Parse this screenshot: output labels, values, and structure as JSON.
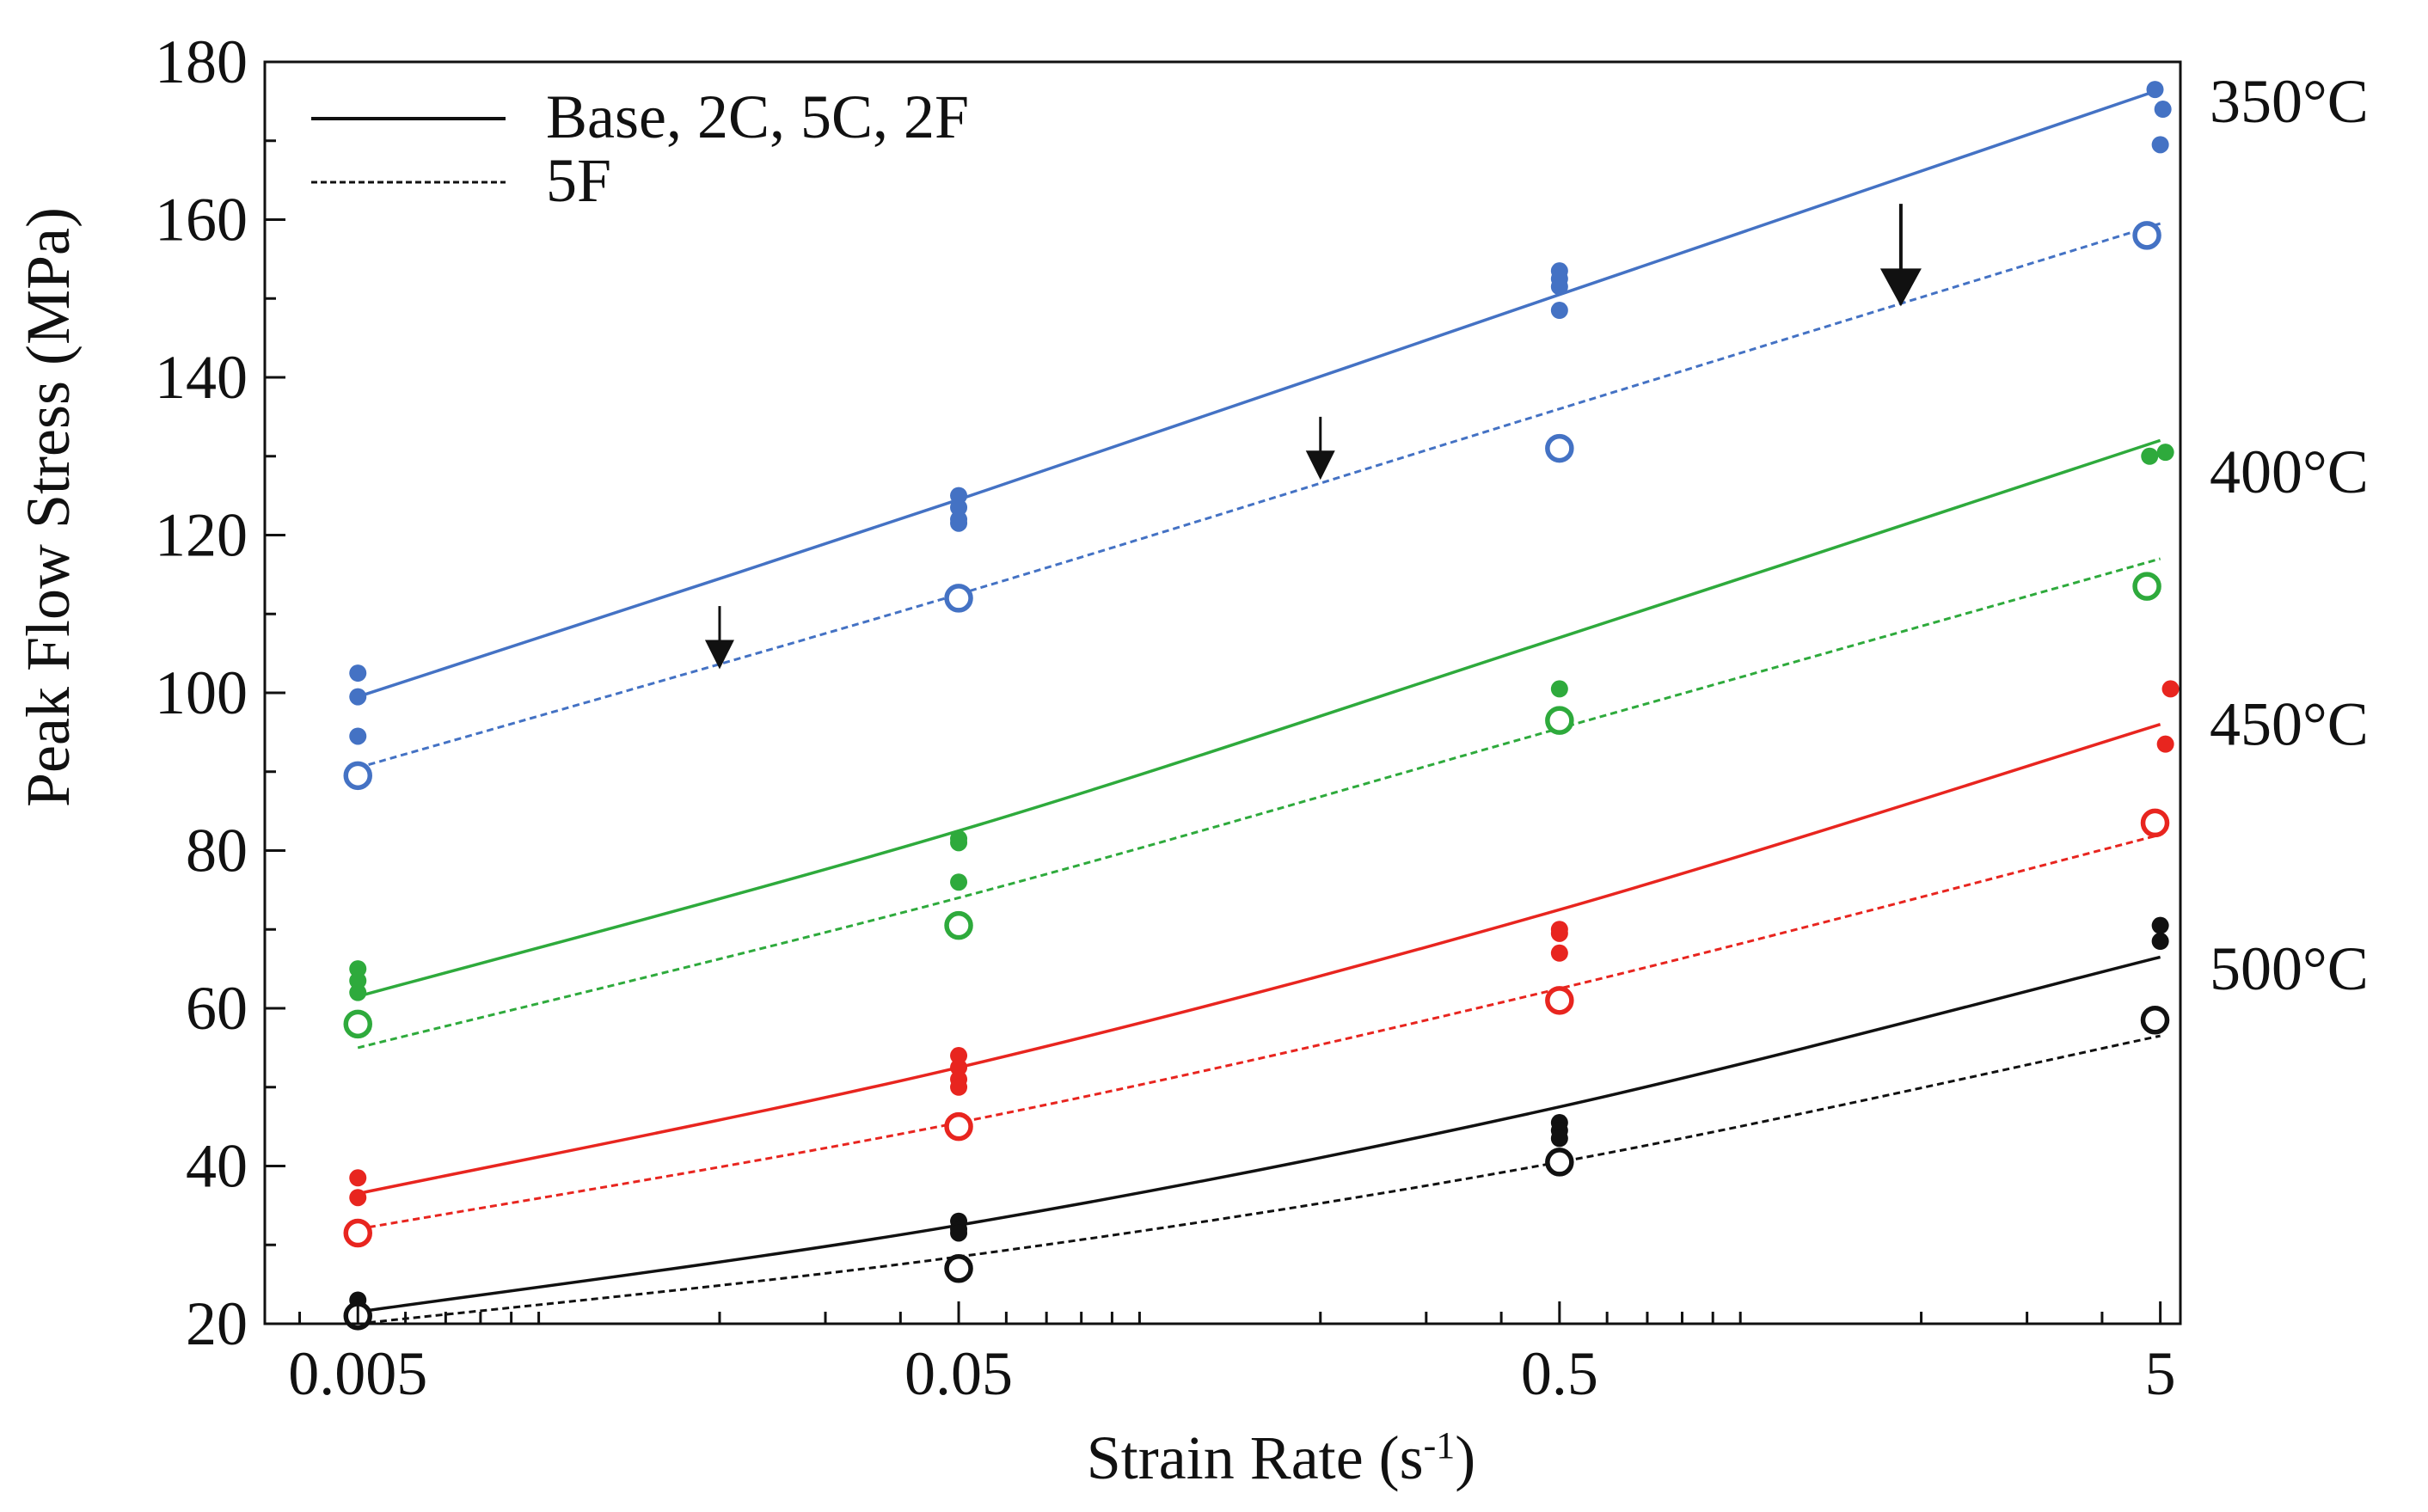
{
  "chart_data": {
    "type": "scatter",
    "xscale": "log",
    "x_ticks": [
      {
        "value": 0.005,
        "label": "0.005"
      },
      {
        "value": 0.05,
        "label": "0.05"
      },
      {
        "value": 0.5,
        "label": "0.5"
      },
      {
        "value": 5,
        "label": "5"
      }
    ],
    "xlim": [
      0.0035,
      5.4
    ],
    "ylim": [
      20,
      180
    ],
    "y_ticks": [
      {
        "value": 20,
        "label": "20"
      },
      {
        "value": 40,
        "label": "40"
      },
      {
        "value": 60,
        "label": "60"
      },
      {
        "value": 80,
        "label": "80"
      },
      {
        "value": 100,
        "label": "100"
      },
      {
        "value": 120,
        "label": "120"
      },
      {
        "value": 140,
        "label": "140"
      },
      {
        "value": 160,
        "label": "160"
      },
      {
        "value": 180,
        "label": "180"
      }
    ],
    "xlabel": "Strain Rate (s",
    "xlabel_sup": "-1",
    "xlabel_end": ")",
    "ylabel": "Peak Flow Stress (MPa)",
    "legend": {
      "position": "top-left",
      "entries": [
        {
          "label": "Base, 2C, 5C, 2F",
          "style": "solid"
        },
        {
          "label": "5F",
          "style": "dashed"
        }
      ]
    },
    "series": [
      {
        "temperature": "350°C",
        "color": "#4472c4",
        "temp_label_y": 175,
        "fit_solid": {
          "x": [
            0.005,
            0.05,
            0.5,
            5
          ],
          "y": [
            99.5,
            124.5,
            150.5,
            176.5
          ]
        },
        "fit_dashed": {
          "x": [
            0.005,
            0.05,
            0.5,
            5
          ],
          "y": [
            90.5,
            112.5,
            136,
            159.5
          ]
        },
        "filled_points": [
          {
            "x": 0.005,
            "y": 102.5
          },
          {
            "x": 0.005,
            "y": 99.5
          },
          {
            "x": 0.005,
            "y": 94.5
          },
          {
            "x": 0.05,
            "y": 125
          },
          {
            "x": 0.05,
            "y": 123.5
          },
          {
            "x": 0.05,
            "y": 122
          },
          {
            "x": 0.05,
            "y": 121.5
          },
          {
            "x": 0.5,
            "y": 153.5
          },
          {
            "x": 0.5,
            "y": 152.5
          },
          {
            "x": 0.5,
            "y": 151.5
          },
          {
            "x": 0.5,
            "y": 148.5
          },
          {
            "x": 4.9,
            "y": 176.5
          },
          {
            "x": 5.05,
            "y": 174
          },
          {
            "x": 5.0,
            "y": 169.5
          }
        ],
        "open_points": [
          {
            "x": 0.005,
            "y": 89.5
          },
          {
            "x": 0.05,
            "y": 112
          },
          {
            "x": 0.5,
            "y": 131
          },
          {
            "x": 4.75,
            "y": 158
          }
        ]
      },
      {
        "temperature": "400°C",
        "color": "#2eaa3c",
        "temp_label_y": 128,
        "fit_solid": {
          "x": [
            0.005,
            0.05,
            0.5,
            5
          ],
          "y": [
            61.5,
            82.5,
            107,
            132
          ]
        },
        "fit_dashed": {
          "x": [
            0.005,
            0.05,
            0.5,
            5
          ],
          "y": [
            55,
            74,
            95.5,
            117
          ]
        },
        "filled_points": [
          {
            "x": 0.005,
            "y": 65
          },
          {
            "x": 0.005,
            "y": 63.5
          },
          {
            "x": 0.005,
            "y": 62
          },
          {
            "x": 0.05,
            "y": 81.5
          },
          {
            "x": 0.05,
            "y": 81
          },
          {
            "x": 0.05,
            "y": 76
          },
          {
            "x": 0.5,
            "y": 100.5
          },
          {
            "x": 4.8,
            "y": 130
          },
          {
            "x": 5.1,
            "y": 130.5
          }
        ],
        "open_points": [
          {
            "x": 0.005,
            "y": 58
          },
          {
            "x": 0.05,
            "y": 70.5
          },
          {
            "x": 0.5,
            "y": 96.5
          },
          {
            "x": 4.75,
            "y": 113.5
          }
        ]
      },
      {
        "temperature": "450°C",
        "color": "#e8251f",
        "temp_label_y": 96,
        "fit_solid": {
          "x": [
            0.005,
            0.05,
            0.5,
            5
          ],
          "y": [
            36.5,
            52.5,
            72.5,
            96
          ]
        },
        "fit_dashed": {
          "x": [
            0.005,
            0.05,
            0.5,
            5
          ],
          "y": [
            32,
            45.5,
            62.5,
            82
          ]
        },
        "filled_points": [
          {
            "x": 0.005,
            "y": 38.5
          },
          {
            "x": 0.005,
            "y": 36
          },
          {
            "x": 0.05,
            "y": 54
          },
          {
            "x": 0.05,
            "y": 52.5
          },
          {
            "x": 0.05,
            "y": 51
          },
          {
            "x": 0.05,
            "y": 50
          },
          {
            "x": 0.5,
            "y": 70
          },
          {
            "x": 0.5,
            "y": 69.5
          },
          {
            "x": 0.5,
            "y": 67
          },
          {
            "x": 5.2,
            "y": 100.5
          },
          {
            "x": 5.1,
            "y": 93.5
          }
        ],
        "open_points": [
          {
            "x": 0.005,
            "y": 31.5
          },
          {
            "x": 0.05,
            "y": 45
          },
          {
            "x": 0.5,
            "y": 61
          },
          {
            "x": 4.9,
            "y": 83.5
          }
        ]
      },
      {
        "temperature": "500°C",
        "color": "#111111",
        "temp_label_y": 65,
        "fit_solid": {
          "x": [
            0.005,
            0.05,
            0.5,
            5
          ],
          "y": [
            21.5,
            32.5,
            47.5,
            66.5
          ]
        },
        "fit_dashed": {
          "x": [
            0.005,
            0.05,
            0.5,
            5
          ],
          "y": [
            20,
            28.5,
            40.5,
            56.5
          ]
        },
        "filled_points": [
          {
            "x": 0.005,
            "y": 23
          },
          {
            "x": 0.005,
            "y": 22
          },
          {
            "x": 0.005,
            "y": 21
          },
          {
            "x": 0.05,
            "y": 33
          },
          {
            "x": 0.05,
            "y": 32
          },
          {
            "x": 0.05,
            "y": 31.5
          },
          {
            "x": 0.5,
            "y": 45.5
          },
          {
            "x": 0.5,
            "y": 44.5
          },
          {
            "x": 0.5,
            "y": 43.5
          },
          {
            "x": 5.0,
            "y": 70.5
          },
          {
            "x": 5.0,
            "y": 68.5
          }
        ],
        "open_points": [
          {
            "x": 0.005,
            "y": 21
          },
          {
            "x": 0.05,
            "y": 27
          },
          {
            "x": 0.5,
            "y": 40.5
          },
          {
            "x": 4.9,
            "y": 58.5
          }
        ]
      }
    ],
    "annotations": [
      {
        "type": "arrow",
        "x": 0.02,
        "y_top": 111,
        "y_bottom": 103,
        "size": "medium"
      },
      {
        "type": "arrow",
        "x": 0.2,
        "y_top": 135,
        "y_bottom": 127,
        "size": "medium"
      },
      {
        "type": "arrow",
        "x": 1.85,
        "y_top": 162,
        "y_bottom": 149,
        "size": "large"
      }
    ]
  }
}
